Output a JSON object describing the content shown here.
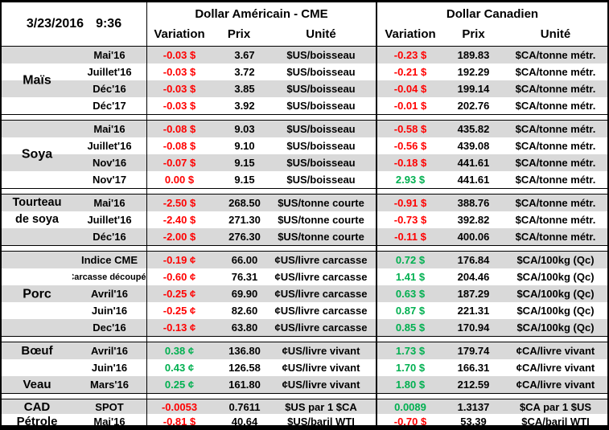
{
  "header": {
    "date": "3/23/2016",
    "time": "9:36",
    "us_title": "Dollar Américain - CME",
    "ca_title": "Dollar Canadien",
    "columns": [
      "Variation",
      "Prix",
      "Unité"
    ]
  },
  "colors": {
    "negative": "#FF0000",
    "positive": "#00B050",
    "stripe": "#D9D9D9",
    "border": "#000000"
  },
  "sections": [
    {
      "name": [
        "Maïs"
      ],
      "name_pos": "center",
      "rows": [
        {
          "month": "Mai'16",
          "us_var": "-0.03 $",
          "us_dir": "neg",
          "us_prix": "3.67",
          "us_unit": "$US/boisseau",
          "ca_var": "-0.23 $",
          "ca_dir": "neg",
          "ca_prix": "189.83",
          "ca_unit": "$CA/tonne métr."
        },
        {
          "month": "Juillet'16",
          "us_var": "-0.03 $",
          "us_dir": "neg",
          "us_prix": "3.72",
          "us_unit": "$US/boisseau",
          "ca_var": "-0.21 $",
          "ca_dir": "neg",
          "ca_prix": "192.29",
          "ca_unit": "$CA/tonne métr."
        },
        {
          "month": "Déc'16",
          "us_var": "-0.03 $",
          "us_dir": "neg",
          "us_prix": "3.85",
          "us_unit": "$US/boisseau",
          "ca_var": "-0.04 $",
          "ca_dir": "neg",
          "ca_prix": "199.14",
          "ca_unit": "$CA/tonne métr."
        },
        {
          "month": "Déc'17",
          "us_var": "-0.03 $",
          "us_dir": "neg",
          "us_prix": "3.92",
          "us_unit": "$US/boisseau",
          "ca_var": "-0.01 $",
          "ca_dir": "neg",
          "ca_prix": "202.76",
          "ca_unit": "$CA/tonne métr."
        }
      ]
    },
    {
      "name": [
        "Soya"
      ],
      "name_pos": "center",
      "rows": [
        {
          "month": "Mai'16",
          "us_var": "-0.08 $",
          "us_dir": "neg",
          "us_prix": "9.03",
          "us_unit": "$US/boisseau",
          "ca_var": "-0.58 $",
          "ca_dir": "neg",
          "ca_prix": "435.82",
          "ca_unit": "$CA/tonne métr."
        },
        {
          "month": "Juillet'16",
          "us_var": "-0.08 $",
          "us_dir": "neg",
          "us_prix": "9.10",
          "us_unit": "$US/boisseau",
          "ca_var": "-0.56 $",
          "ca_dir": "neg",
          "ca_prix": "439.08",
          "ca_unit": "$CA/tonne métr."
        },
        {
          "month": "Nov'16",
          "us_var": "-0.07 $",
          "us_dir": "neg",
          "us_prix": "9.15",
          "us_unit": "$US/boisseau",
          "ca_var": "-0.18 $",
          "ca_dir": "neg",
          "ca_prix": "441.61",
          "ca_unit": "$CA/tonne métr."
        },
        {
          "month": "Nov'17",
          "us_var": "0.00 $",
          "us_dir": "neg",
          "us_prix": "9.15",
          "us_unit": "$US/boisseau",
          "ca_var": "2.93 $",
          "ca_dir": "pos",
          "ca_prix": "441.61",
          "ca_unit": "$CA/tonne métr."
        }
      ]
    },
    {
      "name": [
        "Tourteau",
        "de soya"
      ],
      "name_pos": "top",
      "rows": [
        {
          "month": "Mai'16",
          "us_var": "-2.50 $",
          "us_dir": "neg",
          "us_prix": "268.50",
          "us_unit": "$US/tonne courte",
          "ca_var": "-0.91 $",
          "ca_dir": "neg",
          "ca_prix": "388.76",
          "ca_unit": "$CA/tonne métr."
        },
        {
          "month": "Juillet'16",
          "us_var": "-2.40 $",
          "us_dir": "neg",
          "us_prix": "271.30",
          "us_unit": "$US/tonne courte",
          "ca_var": "-0.73 $",
          "ca_dir": "neg",
          "ca_prix": "392.82",
          "ca_unit": "$CA/tonne métr."
        },
        {
          "month": "Déc'16",
          "us_var": "-2.00 $",
          "us_dir": "neg",
          "us_prix": "276.30",
          "us_unit": "$US/tonne courte",
          "ca_var": "-0.11 $",
          "ca_dir": "neg",
          "ca_prix": "400.06",
          "ca_unit": "$CA/tonne métr."
        }
      ]
    },
    {
      "name": [
        "Porc"
      ],
      "name_pos": "center",
      "rows": [
        {
          "month": "Indice CME",
          "us_var": "-0.19 ¢",
          "us_dir": "neg",
          "us_prix": "66.00",
          "us_unit": "¢US/livre carcasse",
          "ca_var": "0.72 $",
          "ca_dir": "pos",
          "ca_prix": "176.84",
          "ca_unit": "$CA/100kg (Qc)"
        },
        {
          "month": "Carcasse découpée",
          "us_var": "-0.60 ¢",
          "us_dir": "neg",
          "us_prix": "76.31",
          "us_unit": "¢US/livre carcasse",
          "ca_var": "1.41 $",
          "ca_dir": "pos",
          "ca_prix": "204.46",
          "ca_unit": "$CA/100kg (Qc)"
        },
        {
          "month": "Avril'16",
          "us_var": "-0.25 ¢",
          "us_dir": "neg",
          "us_prix": "69.90",
          "us_unit": "¢US/livre carcasse",
          "ca_var": "0.63 $",
          "ca_dir": "pos",
          "ca_prix": "187.29",
          "ca_unit": "$CA/100kg (Qc)"
        },
        {
          "month": "Juin'16",
          "us_var": "-0.25 ¢",
          "us_dir": "neg",
          "us_prix": "82.60",
          "us_unit": "¢US/livre carcasse",
          "ca_var": "0.87 $",
          "ca_dir": "pos",
          "ca_prix": "221.31",
          "ca_unit": "$CA/100kg (Qc)"
        },
        {
          "month": "Dec'16",
          "us_var": "-0.13 ¢",
          "us_dir": "neg",
          "us_prix": "63.80",
          "us_unit": "¢US/livre carcasse",
          "ca_var": "0.85 $",
          "ca_dir": "pos",
          "ca_prix": "170.94",
          "ca_unit": "$CA/100kg (Qc)"
        }
      ]
    },
    {
      "rows": [
        {
          "label": "Bœuf",
          "month": "Avril'16",
          "us_var": "0.38 ¢",
          "us_dir": "pos",
          "us_prix": "136.80",
          "us_unit": "¢US/livre vivant",
          "ca_var": "1.73 $",
          "ca_dir": "pos",
          "ca_prix": "179.74",
          "ca_unit": "¢CA/livre vivant"
        },
        {
          "label": "",
          "month": "Juin'16",
          "us_var": "0.43 ¢",
          "us_dir": "pos",
          "us_prix": "126.58",
          "us_unit": "¢US/livre vivant",
          "ca_var": "1.70 $",
          "ca_dir": "pos",
          "ca_prix": "166.31",
          "ca_unit": "¢CA/livre vivant"
        },
        {
          "label": "Veau",
          "month": "Mars'16",
          "us_var": "0.25 ¢",
          "us_dir": "pos",
          "us_prix": "161.80",
          "us_unit": "¢US/livre vivant",
          "ca_var": "1.80 $",
          "ca_dir": "pos",
          "ca_prix": "212.59",
          "ca_unit": "¢CA/livre vivant"
        }
      ]
    },
    {
      "compact": true,
      "rows": [
        {
          "label": "CAD",
          "month": "SPOT",
          "us_var": "-0.0053",
          "us_dir": "neg",
          "us_prix": "0.7611",
          "us_unit": "$US par 1 $CA",
          "ca_var": "0.0089",
          "ca_dir": "pos",
          "ca_prix": "1.3137",
          "ca_unit": "$CA par 1 $US"
        },
        {
          "label": "Pétrole",
          "month": "Mai'16",
          "us_var": "-0.81 $",
          "us_dir": "neg",
          "us_prix": "40.64",
          "us_unit": "$US/baril WTI",
          "ca_var": "-0.70 $",
          "ca_dir": "neg",
          "ca_prix": "53.39",
          "ca_unit": "$CA/baril WTI"
        }
      ]
    }
  ]
}
